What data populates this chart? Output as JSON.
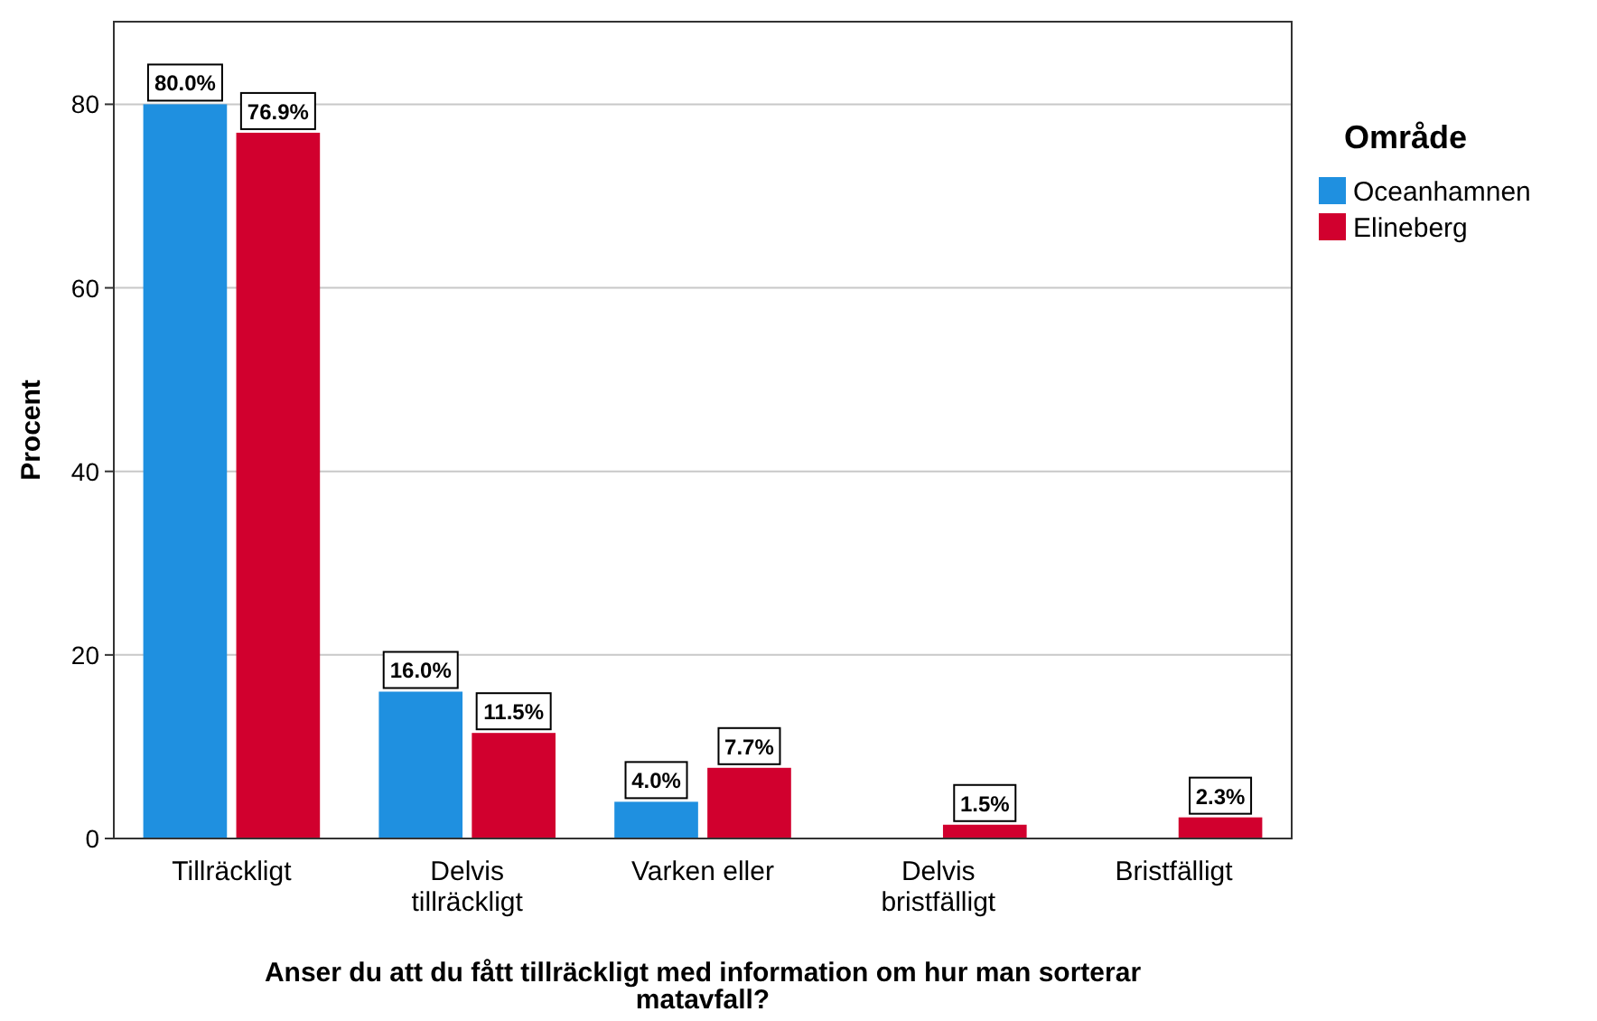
{
  "chart_data": {
    "type": "bar",
    "xlabel": "Anser du att du fått tillräckligt med information om hur man sorterar matavfall?",
    "ylabel": "Procent",
    "legend_title": "Område",
    "categories": [
      "Tillräckligt",
      "Delvis tillräckligt",
      "Varken eller",
      "Delvis bristfälligt",
      "Bristfälligt"
    ],
    "series": [
      {
        "name": "Oceanhamnen",
        "color": "#1f90e0",
        "values": [
          80.0,
          16.0,
          4.0,
          null,
          null
        ],
        "value_labels": [
          "80.0%",
          "16.0%",
          "4.0%",
          null,
          null
        ]
      },
      {
        "name": "Elineberg",
        "color": "#d1002e",
        "values": [
          76.9,
          11.5,
          7.7,
          1.5,
          2.3
        ],
        "value_labels": [
          "76.9%",
          "11.5%",
          "7.7%",
          "1.5%",
          "2.3%"
        ]
      }
    ],
    "ylim": [
      0,
      89
    ],
    "yticks": [
      0,
      20,
      40,
      60,
      80
    ],
    "grid": "y",
    "legend": "right"
  }
}
